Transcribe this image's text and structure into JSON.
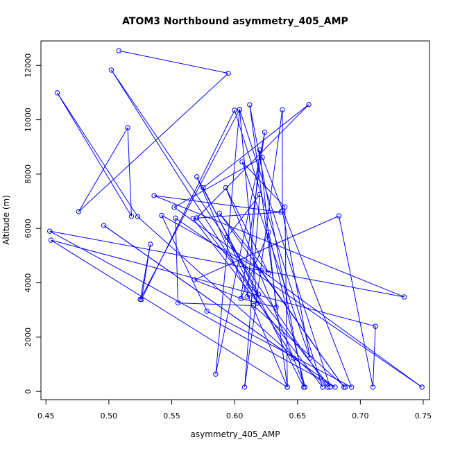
{
  "chart_data": {
    "type": "line",
    "title": "ATOM3 Northbound asymmetry_405_AMP",
    "xlabel": "asymmetry_405_AMP",
    "ylabel": "Altitude (m)",
    "xlim": [
      0.446,
      0.755
    ],
    "ylim": [
      -300,
      12900
    ],
    "x_ticks": [
      0.45,
      0.5,
      0.55,
      0.6,
      0.65,
      0.7,
      0.75
    ],
    "x_tick_labels": [
      "0.45",
      "0.50",
      "0.55",
      "0.60",
      "0.65",
      "0.70",
      "0.75"
    ],
    "y_ticks": [
      0,
      2000,
      4000,
      6000,
      8000,
      10000,
      12000
    ],
    "y_tick_labels": [
      "0",
      "2000",
      "4000",
      "6000",
      "8000",
      "10000",
      "12000"
    ],
    "grid": false,
    "legend": "none",
    "line_color": "#0000ff",
    "marker": "open-circle",
    "series": [
      {
        "points": [
          [
            0.508,
            12540
          ],
          [
            0.595,
            11710
          ],
          [
            0.476,
            6620
          ],
          [
            0.515,
            9710
          ],
          [
            0.518,
            6450
          ],
          [
            0.459,
            10990
          ],
          [
            0.523,
            6430
          ],
          [
            0.674,
            160
          ],
          [
            0.502,
            11830
          ],
          [
            0.647,
            1230
          ],
          [
            0.496,
            6110
          ],
          [
            0.68,
            160
          ],
          [
            0.453,
            5900
          ],
          [
            0.735,
            3480
          ],
          [
            0.536,
            7210
          ],
          [
            0.637,
            6600
          ],
          [
            0.567,
            6370
          ],
          [
            0.67,
            160
          ],
          [
            0.6,
            10350
          ],
          [
            0.526,
            3390
          ],
          [
            0.533,
            5420
          ],
          [
            0.525,
            3390
          ],
          [
            0.604,
            10380
          ],
          [
            0.676,
            160
          ],
          [
            0.57,
            6390
          ],
          [
            0.659,
            10560
          ],
          [
            0.575,
            7500
          ],
          [
            0.655,
            160
          ],
          [
            0.612,
            10550
          ],
          [
            0.642,
            160
          ],
          [
            0.454,
            5570
          ],
          [
            0.712,
            2400
          ],
          [
            0.71,
            160
          ],
          [
            0.683,
            6460
          ],
          [
            0.568,
            4110
          ],
          [
            0.605,
            3420
          ],
          [
            0.624,
            9540
          ],
          [
            0.585,
            640
          ],
          [
            0.604,
            10380
          ],
          [
            0.618,
            3250
          ],
          [
            0.594,
            5670
          ],
          [
            0.62,
            7250
          ],
          [
            0.608,
            160
          ],
          [
            0.638,
            10370
          ],
          [
            0.638,
            6650
          ],
          [
            0.66,
            1230
          ],
          [
            0.606,
            8450
          ],
          [
            0.64,
            6790
          ],
          [
            0.642,
            160
          ],
          [
            0.57,
            7900
          ],
          [
            0.619,
            3580
          ],
          [
            0.61,
            3490
          ],
          [
            0.62,
            8890
          ],
          [
            0.633,
            3100
          ],
          [
            0.605,
            3420
          ],
          [
            0.627,
            5860
          ],
          [
            0.656,
            160
          ],
          [
            0.593,
            7500
          ],
          [
            0.627,
            4360
          ],
          [
            0.588,
            6560
          ],
          [
            0.687,
            160
          ],
          [
            0.621,
            4460
          ],
          [
            0.542,
            6480
          ],
          [
            0.578,
            2960
          ],
          [
            0.693,
            160
          ],
          [
            0.622,
            8610
          ],
          [
            0.552,
            6780
          ],
          [
            0.749,
            160
          ],
          [
            0.553,
            6380
          ],
          [
            0.555,
            3260
          ],
          [
            0.615,
            3160
          ],
          [
            0.688,
            160
          ]
        ]
      }
    ]
  }
}
